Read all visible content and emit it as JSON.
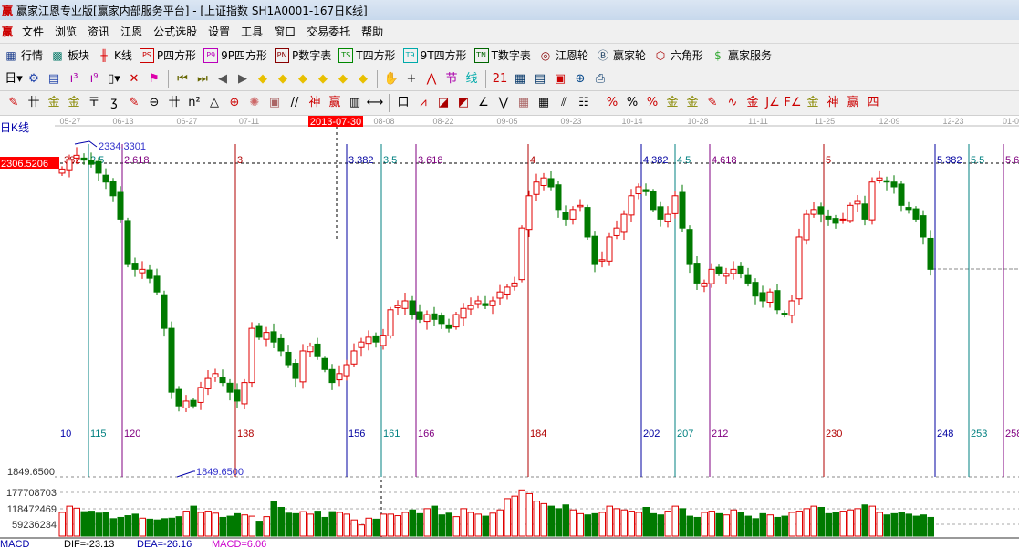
{
  "window": {
    "title": "赢家江恩专业版[赢家内部服务平台] - [上证指数  SH1A0001-167日K线]",
    "logo": "赢"
  },
  "menu": [
    "文件",
    "浏览",
    "资讯",
    "江恩",
    "公式选股",
    "设置",
    "工具",
    "窗口",
    "交易委托",
    "帮助"
  ],
  "toolbar1": [
    {
      "icon": "quote-table-icon",
      "glyph": "▦",
      "color": "#1a3c8c",
      "label": "行情"
    },
    {
      "icon": "sector-icon",
      "glyph": "▩",
      "color": "#0a7a6a",
      "label": "板块"
    },
    {
      "icon": "kline-icon",
      "glyph": "╫",
      "color": "#d00",
      "label": "K线"
    },
    {
      "icon": "ps-icon",
      "glyph": "PS",
      "color": "#c00",
      "box": true,
      "label": "P四方形"
    },
    {
      "icon": "p9-icon",
      "glyph": "P9",
      "color": "#b0b",
      "box": true,
      "label": "9P四方形"
    },
    {
      "icon": "pn-icon",
      "glyph": "PN",
      "color": "#800",
      "box": true,
      "label": "P数字表"
    },
    {
      "icon": "ts-icon",
      "glyph": "TS",
      "color": "#080",
      "box": true,
      "label": "T四方形"
    },
    {
      "icon": "t9-icon",
      "glyph": "T9",
      "color": "#0aa",
      "box": true,
      "label": "9T四方形"
    },
    {
      "icon": "tn-icon",
      "glyph": "TN",
      "color": "#060",
      "box": true,
      "label": "T数字表"
    },
    {
      "icon": "gann-wheel-icon",
      "glyph": "◎",
      "color": "#800",
      "label": "江恩轮"
    },
    {
      "icon": "winner-wheel-icon",
      "glyph": "Ⓑ",
      "color": "#246",
      "label": "赢家轮"
    },
    {
      "icon": "hexagon-icon",
      "glyph": "⬡",
      "color": "#a00",
      "label": "六角形"
    },
    {
      "icon": "dollar-icon",
      "glyph": "$",
      "color": "#3a3",
      "label": "赢家服务"
    }
  ],
  "toolbar2": [
    {
      "icon": "period-day-icon",
      "glyph": "日▾",
      "color": "#000"
    },
    {
      "icon": "link-icon",
      "glyph": "⚙",
      "color": "#24a"
    },
    {
      "icon": "notes-icon",
      "glyph": "▤",
      "color": "#24a"
    },
    {
      "icon": "indicator3-icon",
      "glyph": "ı³",
      "color": "#a0a"
    },
    {
      "icon": "indicator9-icon",
      "glyph": "ı⁹",
      "color": "#a0a"
    },
    {
      "icon": "candle-type-icon",
      "glyph": "▯▾",
      "color": "#000"
    },
    {
      "icon": "draw-icon",
      "glyph": "✕",
      "color": "#c00"
    },
    {
      "icon": "flag-icon",
      "glyph": "⚑",
      "color": "#d0a"
    },
    {
      "icon": "first-icon",
      "glyph": "⏮",
      "color": "#660"
    },
    {
      "icon": "last-icon",
      "glyph": "⏭",
      "color": "#660"
    },
    {
      "icon": "prev-icon",
      "glyph": "◀",
      "color": "#555"
    },
    {
      "icon": "next-icon",
      "glyph": "▶",
      "color": "#555"
    },
    {
      "icon": "left-move-icon",
      "glyph": "◆",
      "color": "#e8c000"
    },
    {
      "icon": "right-move-icon",
      "glyph": "◆",
      "color": "#e8c000"
    },
    {
      "icon": "widen-icon",
      "glyph": "◆",
      "color": "#e8c000"
    },
    {
      "icon": "narrow-icon",
      "glyph": "◆",
      "color": "#e8c000"
    },
    {
      "icon": "zoom-in-icon",
      "glyph": "◆",
      "color": "#e8c000"
    },
    {
      "icon": "zoom-out-icon",
      "glyph": "◆",
      "color": "#e8c000"
    },
    {
      "icon": "hand-icon",
      "glyph": "✋",
      "color": "#000"
    },
    {
      "icon": "crosshair-icon",
      "glyph": "+",
      "color": "#000"
    },
    {
      "icon": "line-icon",
      "glyph": "⋀",
      "color": "#c00"
    },
    {
      "icon": "section-icon",
      "glyph": "节",
      "color": "#a0a"
    },
    {
      "icon": "line-tool-icon",
      "glyph": "线",
      "color": "#0aa"
    },
    {
      "icon": "calendar-icon",
      "glyph": "21",
      "color": "#c00"
    },
    {
      "icon": "calculator-icon",
      "glyph": "▦",
      "color": "#036"
    },
    {
      "icon": "report-icon",
      "glyph": "▤",
      "color": "#036"
    },
    {
      "icon": "save-icon",
      "glyph": "▣",
      "color": "#c00"
    },
    {
      "icon": "network-icon",
      "glyph": "⊕",
      "color": "#048"
    },
    {
      "icon": "print-icon",
      "glyph": "⎙",
      "color": "#036"
    }
  ],
  "toolbar3": [
    {
      "icon": "pen-icon",
      "glyph": "✎",
      "color": "#c00"
    },
    {
      "icon": "grid-icon",
      "glyph": "卄",
      "color": "#000"
    },
    {
      "icon": "gold-icon",
      "glyph": "金",
      "color": "#880"
    },
    {
      "icon": "gold2-icon",
      "glyph": "金",
      "color": "#880"
    },
    {
      "icon": "fib-icon",
      "glyph": "〒",
      "color": "#000"
    },
    {
      "icon": "spiral-icon",
      "glyph": "ʒ",
      "color": "#000"
    },
    {
      "icon": "pen2-icon",
      "glyph": "✎",
      "color": "#c00"
    },
    {
      "icon": "circle-icon",
      "glyph": "⊖",
      "color": "#000"
    },
    {
      "icon": "grid2-icon",
      "glyph": "卄",
      "color": "#000"
    },
    {
      "icon": "square-icon",
      "glyph": "n²",
      "color": "#000"
    },
    {
      "icon": "triangle-icon",
      "glyph": "△",
      "color": "#000"
    },
    {
      "icon": "target-icon",
      "glyph": "⊕",
      "color": "#c00"
    },
    {
      "icon": "radar-icon",
      "glyph": "✺",
      "color": "#c66"
    },
    {
      "icon": "box-icon",
      "glyph": "▣",
      "color": "#a66"
    },
    {
      "icon": "slash-icon",
      "glyph": "//",
      "color": "#000"
    },
    {
      "icon": "shen-icon",
      "glyph": "神",
      "color": "#c00"
    },
    {
      "icon": "ying-icon",
      "glyph": "赢",
      "color": "#c00"
    },
    {
      "icon": "ruler-icon",
      "glyph": "▥",
      "color": "#000"
    },
    {
      "icon": "span-icon",
      "glyph": "⟷",
      "color": "#000"
    },
    {
      "icon": "rect-icon",
      "glyph": "口",
      "color": "#000"
    },
    {
      "icon": "fan-icon",
      "glyph": "⩘",
      "color": "#c00"
    },
    {
      "icon": "fan2-icon",
      "glyph": "◪",
      "color": "#a00"
    },
    {
      "icon": "fan3-icon",
      "glyph": "◩",
      "color": "#a00"
    },
    {
      "icon": "angle-icon",
      "glyph": "∠",
      "color": "#000"
    },
    {
      "icon": "zigzag-icon",
      "glyph": "⋁",
      "color": "#000"
    },
    {
      "icon": "grid3-icon",
      "glyph": "▦",
      "color": "#a66"
    },
    {
      "icon": "grid4-icon",
      "glyph": "▦",
      "color": "#000"
    },
    {
      "icon": "parallel-icon",
      "glyph": "⫽",
      "color": "#000"
    },
    {
      "icon": "table-icon",
      "glyph": "☷",
      "color": "#000"
    },
    {
      "icon": "percent-line-icon",
      "glyph": "%",
      "color": "#c00"
    },
    {
      "icon": "percent-icon",
      "glyph": "%",
      "color": "#000"
    },
    {
      "icon": "percent2-icon",
      "glyph": "%",
      "color": "#c00"
    },
    {
      "icon": "gold-circle-icon",
      "glyph": "金",
      "color": "#880"
    },
    {
      "icon": "gold-line-icon",
      "glyph": "金",
      "color": "#880"
    },
    {
      "icon": "pen3-icon",
      "glyph": "✎",
      "color": "#c00"
    },
    {
      "icon": "wave-icon",
      "glyph": "∿",
      "color": "#c00"
    },
    {
      "icon": "gold-bar-icon",
      "glyph": "金",
      "color": "#c00"
    },
    {
      "icon": "j-angle-icon",
      "glyph": "J∠",
      "color": "#c00"
    },
    {
      "icon": "f-angle-icon",
      "glyph": "F∠",
      "color": "#c00"
    },
    {
      "icon": "gold-angle-icon",
      "glyph": "金∠",
      "color": "#880"
    },
    {
      "icon": "shen-angle-icon",
      "glyph": "神∠",
      "color": "#c00"
    },
    {
      "icon": "ying-angle-icon",
      "glyph": "赢∠",
      "color": "#c00"
    },
    {
      "icon": "si-angle-icon",
      "glyph": "四∠",
      "color": "#c00"
    }
  ],
  "chart_data": {
    "type": "candlestick",
    "title": "日K线",
    "selected_date": "2013-07-30",
    "time_ticks": [
      "05-27",
      "06-13",
      "06-27",
      "07-11",
      "08-08",
      "08-22",
      "09-05",
      "09-23",
      "10-14",
      "10-28",
      "11-11",
      "11-25",
      "12-09",
      "12-23",
      "01-0"
    ],
    "current_price_label": "2306.5206",
    "high_label": "2334.3301",
    "low_label": "1849.6500",
    "ylim": [
      1849.65,
      2334.33
    ],
    "closes": [
      2298,
      2311,
      2318,
      2311,
      2305,
      2292,
      2279,
      2259,
      2225,
      2159,
      2152,
      2152,
      2139,
      2119,
      2066,
      1973,
      1953,
      1960,
      1953,
      1980,
      1993,
      2000,
      1987,
      1973,
      1960,
      1987,
      2066,
      2053,
      2060,
      2046,
      2033,
      2013,
      1993,
      2033,
      2040,
      2026,
      2006,
      1987,
      2000,
      2013,
      2033,
      2046,
      2053,
      2046,
      2056,
      2093,
      2099,
      2106,
      2086,
      2079,
      2086,
      2079,
      2073,
      2066,
      2086,
      2095,
      2099,
      2106,
      2099,
      2106,
      2119,
      2126,
      2132,
      2212,
      2259,
      2279,
      2285,
      2272,
      2239,
      2225,
      2239,
      2245,
      2199,
      2159,
      2166,
      2199,
      2212,
      2232,
      2259,
      2272,
      2265,
      2239,
      2225,
      2232,
      2259,
      2212,
      2159,
      2132,
      2132,
      2152,
      2146,
      2146,
      2152,
      2146,
      2132,
      2113,
      2106,
      2119,
      2093,
      2086,
      2106,
      2199,
      2232,
      2239,
      2232,
      2225,
      2219,
      2225,
      2245,
      2252,
      2225,
      2279,
      2285,
      2279,
      2272,
      2245,
      2239,
      2225,
      2199,
      2152
    ],
    "volume_millions": [
      95,
      120,
      112,
      98,
      100,
      92,
      95,
      70,
      75,
      82,
      88,
      72,
      68,
      65,
      70,
      72,
      78,
      100,
      120,
      95,
      100,
      92,
      75,
      80,
      90,
      85,
      80,
      60,
      78,
      140,
      115,
      92,
      90,
      98,
      88,
      100,
      75,
      98,
      95,
      88,
      65,
      45,
      72,
      68,
      88,
      88,
      82,
      95,
      105,
      90,
      110,
      120,
      85,
      92,
      78,
      110,
      95,
      88,
      80,
      92,
      105,
      150,
      160,
      185,
      170,
      140,
      130,
      120,
      110,
      125,
      105,
      90,
      85,
      90,
      95,
      120,
      110,
      105,
      100,
      95,
      115,
      90,
      85,
      100,
      120,
      110,
      80,
      75,
      95,
      100,
      90,
      85,
      105,
      95,
      80,
      70,
      90,
      85,
      75,
      80,
      95,
      100,
      110,
      120,
      115,
      90,
      95,
      100,
      105,
      110,
      125,
      120,
      95,
      85,
      90,
      95,
      88,
      80,
      85,
      75
    ],
    "volume_ticks": [
      "177708703",
      "118472469",
      "59236234"
    ],
    "gann_lines": [
      {
        "top": "2.5",
        "bottom": "115",
        "color": "#008080"
      },
      {
        "top": "2.618",
        "bottom": "120",
        "color": "#800080"
      },
      {
        "top": "3",
        "bottom": "138",
        "color": "#b00000"
      },
      {
        "top": "3.382",
        "bottom": "156",
        "color": "#0000a0"
      },
      {
        "top": "3.5",
        "bottom": "161",
        "color": "#008080"
      },
      {
        "top": "3.618",
        "bottom": "166",
        "color": "#800080"
      },
      {
        "top": "4",
        "bottom": "184",
        "color": "#b00000"
      },
      {
        "top": "4.382",
        "bottom": "202",
        "color": "#0000a0"
      },
      {
        "top": "4.5",
        "bottom": "207",
        "color": "#008080"
      },
      {
        "top": "4.618",
        "bottom": "212",
        "color": "#800080"
      },
      {
        "top": "5",
        "bottom": "230",
        "color": "#b00000"
      },
      {
        "top": "5.382",
        "bottom": "248",
        "color": "#0000a0"
      },
      {
        "top": "5.5",
        "bottom": "253",
        "color": "#008080"
      },
      {
        "top": "5.6",
        "bottom": "258",
        "color": "#800080"
      }
    ],
    "first_marks": {
      "top": "382",
      "bottom": "10"
    },
    "macd": {
      "name": "MACD",
      "dif": "DIF=-23.13",
      "dea": "DEA=-26.16",
      "macd": "MACD=6.06"
    },
    "colors": {
      "up": "#e00000",
      "down": "#007a00",
      "label_bg": "#ff0000"
    }
  }
}
